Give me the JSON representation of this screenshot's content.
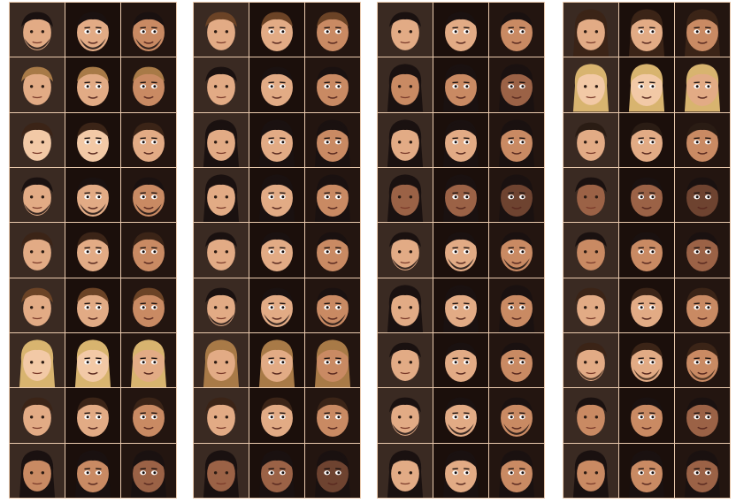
{
  "figure": {
    "panel_count": 4,
    "rows_per_panel": 9,
    "columns": [
      "photo",
      "avatar-a",
      "avatar-b"
    ]
  },
  "palette": {
    "separator": "#e9c9ad",
    "avatar_bg_a": "#1b0f0b",
    "avatar_bg_b": "#231510",
    "skin_tones": [
      "#f2c9a6",
      "#e2ab85",
      "#c98a63",
      "#9b6246",
      "#6e4330"
    ],
    "hair_tones": [
      "#1a1110",
      "#3b2417",
      "#6b4326",
      "#a87a47",
      "#d8b46f",
      "#2a1c14"
    ]
  },
  "panels": [
    {
      "rows": [
        {
          "skin": 1,
          "hair": 0,
          "beard": true,
          "long_hair": false
        },
        {
          "skin": 1,
          "hair": 3,
          "beard": false,
          "long_hair": false
        },
        {
          "skin": 0,
          "hair": 1,
          "beard": false,
          "long_hair": false
        },
        {
          "skin": 1,
          "hair": 0,
          "beard": true,
          "long_hair": false
        },
        {
          "skin": 1,
          "hair": 1,
          "beard": false,
          "long_hair": false
        },
        {
          "skin": 1,
          "hair": 2,
          "beard": false,
          "long_hair": false
        },
        {
          "skin": 0,
          "hair": 4,
          "beard": false,
          "long_hair": true
        },
        {
          "skin": 1,
          "hair": 1,
          "beard": false,
          "long_hair": false
        },
        {
          "skin": 2,
          "hair": 0,
          "beard": false,
          "long_hair": true
        }
      ]
    },
    {
      "rows": [
        {
          "skin": 1,
          "hair": 2,
          "beard": false,
          "long_hair": false
        },
        {
          "skin": 1,
          "hair": 0,
          "beard": false,
          "long_hair": false
        },
        {
          "skin": 1,
          "hair": 0,
          "beard": false,
          "long_hair": true
        },
        {
          "skin": 1,
          "hair": 0,
          "beard": false,
          "long_hair": true
        },
        {
          "skin": 1,
          "hair": 0,
          "beard": false,
          "long_hair": false
        },
        {
          "skin": 1,
          "hair": 0,
          "beard": true,
          "long_hair": false
        },
        {
          "skin": 1,
          "hair": 3,
          "beard": false,
          "long_hair": true
        },
        {
          "skin": 1,
          "hair": 1,
          "beard": false,
          "long_hair": false
        },
        {
          "skin": 3,
          "hair": 0,
          "beard": false,
          "long_hair": true
        }
      ]
    },
    {
      "rows": [
        {
          "skin": 1,
          "hair": 0,
          "beard": false,
          "long_hair": false
        },
        {
          "skin": 2,
          "hair": 0,
          "beard": false,
          "long_hair": true
        },
        {
          "skin": 1,
          "hair": 0,
          "beard": false,
          "long_hair": true
        },
        {
          "skin": 3,
          "hair": 0,
          "beard": false,
          "long_hair": true
        },
        {
          "skin": 1,
          "hair": 0,
          "beard": true,
          "long_hair": false
        },
        {
          "skin": 1,
          "hair": 0,
          "beard": false,
          "long_hair": true
        },
        {
          "skin": 1,
          "hair": 0,
          "beard": false,
          "long_hair": false
        },
        {
          "skin": 1,
          "hair": 0,
          "beard": true,
          "long_hair": false
        },
        {
          "skin": 1,
          "hair": 0,
          "beard": false,
          "long_hair": true
        }
      ]
    },
    {
      "rows": [
        {
          "skin": 1,
          "hair": 1,
          "beard": false,
          "long_hair": true
        },
        {
          "skin": 0,
          "hair": 4,
          "beard": false,
          "long_hair": true
        },
        {
          "skin": 1,
          "hair": 5,
          "beard": false,
          "long_hair": false
        },
        {
          "skin": 3,
          "hair": 0,
          "beard": false,
          "long_hair": false
        },
        {
          "skin": 2,
          "hair": 0,
          "beard": false,
          "long_hair": false
        },
        {
          "skin": 1,
          "hair": 1,
          "beard": false,
          "long_hair": false
        },
        {
          "skin": 1,
          "hair": 1,
          "beard": true,
          "long_hair": false
        },
        {
          "skin": 2,
          "hair": 0,
          "beard": false,
          "long_hair": false
        },
        {
          "skin": 2,
          "hair": 0,
          "beard": false,
          "long_hair": true
        }
      ]
    }
  ]
}
